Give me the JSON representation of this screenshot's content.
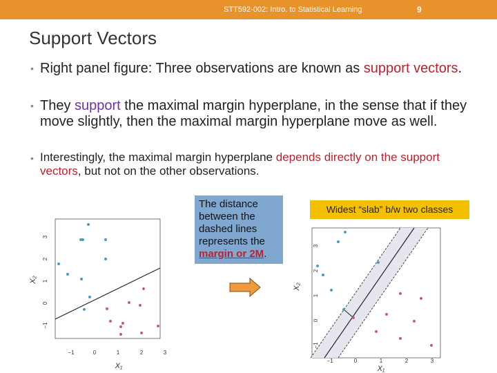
{
  "header": {
    "course": "STT592-002: Intro. to Statistical Learning",
    "page": "9"
  },
  "title": "Support Vectors",
  "bullets": [
    {
      "parts": [
        "Right panel figure: Three observations are known as ",
        "support vectors",
        "."
      ]
    },
    {
      "parts": [
        "They ",
        "support",
        " the maximal margin hyperplane, in the sense that if they move slightly, then the maximal margin hyperplane move as well."
      ]
    },
    {
      "parts": [
        "Interestingly, the maximal margin hyperplane ",
        "depends directly on the support vectors",
        ", but not on the other observations."
      ]
    }
  ],
  "callout": {
    "parts": [
      "The distance between the dashed lines represents the ",
      "margin or 2M",
      "."
    ]
  },
  "banner": "Widest “slab” b/w two classes",
  "figures": [
    {
      "xticks": [
        "−1",
        "0",
        "1",
        "2",
        "3"
      ],
      "yticks": [
        "−1",
        "0",
        "1",
        "2",
        "3"
      ],
      "xlabel": "X₁",
      "ylabel": "X₂"
    },
    {
      "xticks": [
        "−1",
        "0",
        "1",
        "2",
        "3"
      ],
      "yticks": [
        "−1",
        "0",
        "1",
        "2",
        "3"
      ],
      "xlabel": "X₁",
      "ylabel": "X₂"
    }
  ]
}
